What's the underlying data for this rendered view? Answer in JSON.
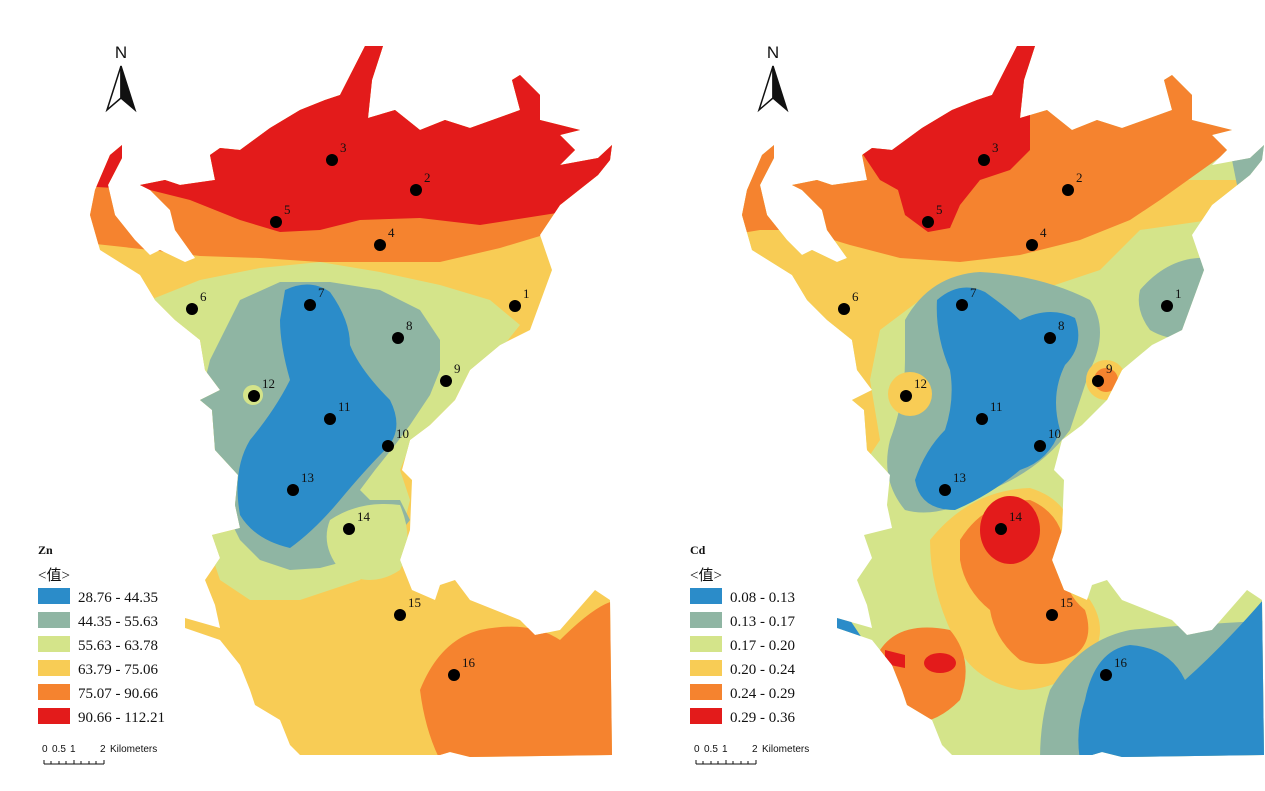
{
  "colors": {
    "class1": "#2b8cc9",
    "class2": "#8fb5a3",
    "class3": "#d4e48a",
    "class4": "#f8cc55",
    "class5": "#f5832f",
    "class6": "#e31b1b"
  },
  "maps": [
    {
      "element": "Zn",
      "legend_subtitle": "<值>",
      "classes": [
        "28.76 - 44.35",
        "44.35 - 55.63",
        "55.63 - 63.78",
        "63.79 - 75.06",
        "75.07 - 90.66",
        "90.66 - 112.21"
      ],
      "north": "N",
      "scale": [
        "0",
        "0.5",
        "1",
        "2",
        "Kilometers"
      ],
      "sites": [
        "1",
        "2",
        "3",
        "4",
        "5",
        "6",
        "7",
        "8",
        "9",
        "10",
        "11",
        "12",
        "13",
        "14",
        "15",
        "16"
      ]
    },
    {
      "element": "Cd",
      "legend_subtitle": "<值>",
      "classes": [
        "0.08 - 0.13",
        "0.13 - 0.17",
        "0.17 - 0.20",
        "0.20 - 0.24",
        "0.24 - 0.29",
        "0.29 - 0.36"
      ],
      "north": "N",
      "scale": [
        "0",
        "0.5",
        "1",
        "2",
        "Kilometers"
      ],
      "sites": [
        "1",
        "2",
        "3",
        "4",
        "5",
        "6",
        "7",
        "8",
        "9",
        "10",
        "11",
        "12",
        "13",
        "14",
        "15",
        "16"
      ]
    }
  ]
}
